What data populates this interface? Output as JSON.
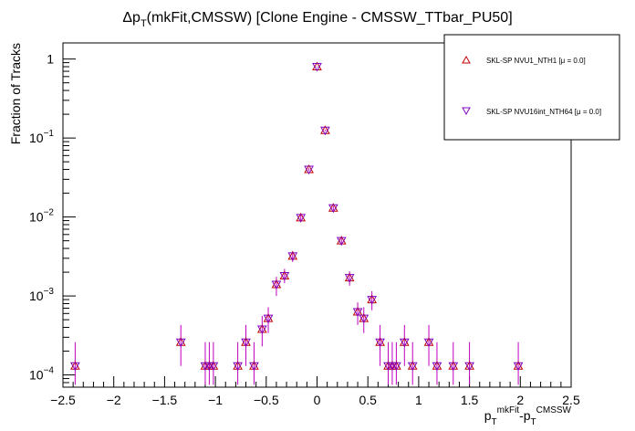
{
  "chart_data": {
    "type": "scatter",
    "title_prefix": "Δp",
    "title_sub": "T",
    "title_suffix": "(mkFit,CMSSW) [Clone Engine - CMSSW_TTbar_PU50]",
    "ylabel": "Fraction of Tracks",
    "xlabel": {
      "p1": "p",
      "p1_sub": "T",
      "p1_sup": "mkFit",
      "sep": "-",
      "p2": "p",
      "p2_sub": "T",
      "p2_sup": "CMSSW"
    },
    "xlim": [
      -2.5,
      2.5
    ],
    "ylim": [
      7e-05,
      1.6
    ],
    "yscale": "log",
    "x_ticks": [
      "−2.5",
      "−2",
      "−1.5",
      "−1",
      "−0.5",
      "0",
      "0.5",
      "1",
      "1.5",
      "2",
      "2.5"
    ],
    "y_ticks": [
      {
        "base": "1",
        "exp": ""
      },
      {
        "base": "10",
        "exp": "−1"
      },
      {
        "base": "10",
        "exp": "−2"
      },
      {
        "base": "10",
        "exp": "−3"
      },
      {
        "base": "10",
        "exp": "−4"
      }
    ],
    "grid": false,
    "legend_position": "top-right",
    "colors": {
      "marker_1": "#c00000",
      "marker_2": "#8000c0",
      "error_bar": "#c000c0"
    },
    "series": [
      {
        "name": "SKL-SP NVU1_NTH1 [μ =  0.0]",
        "marker": "triangle-up",
        "points": [
          {
            "x": -2.38,
            "y": 0.00013,
            "lo": 7.5e-05,
            "hi": 0.00026
          },
          {
            "x": -1.34,
            "y": 0.00026,
            "lo": 0.00013,
            "hi": 0.00043
          },
          {
            "x": -1.1,
            "y": 0.00013,
            "lo": 7.5e-05,
            "hi": 0.00026
          },
          {
            "x": -1.06,
            "y": 0.00013,
            "lo": 7.5e-05,
            "hi": 0.00026
          },
          {
            "x": -1.02,
            "y": 0.00013,
            "lo": 7.5e-05,
            "hi": 0.00026
          },
          {
            "x": -0.78,
            "y": 0.00013,
            "lo": 7.5e-05,
            "hi": 0.00026
          },
          {
            "x": -0.7,
            "y": 0.00026,
            "lo": 0.00013,
            "hi": 0.00043
          },
          {
            "x": -0.62,
            "y": 0.00013,
            "lo": 7.5e-05,
            "hi": 0.00026
          },
          {
            "x": -0.54,
            "y": 0.00038,
            "lo": 0.00023,
            "hi": 0.00056
          },
          {
            "x": -0.48,
            "y": 0.00052,
            "lo": 0.00034,
            "hi": 0.00072
          },
          {
            "x": -0.4,
            "y": 0.0014,
            "lo": 0.001,
            "hi": 0.00175
          },
          {
            "x": -0.32,
            "y": 0.0018,
            "lo": 0.00145,
            "hi": 0.0022
          },
          {
            "x": -0.24,
            "y": 0.0032,
            "lo": 0.0027,
            "hi": 0.0037
          },
          {
            "x": -0.16,
            "y": 0.0098,
            "lo": 0.009,
            "hi": 0.0107
          },
          {
            "x": -0.08,
            "y": 0.04,
            "lo": 0.0385,
            "hi": 0.0415
          },
          {
            "x": 0.0,
            "y": 0.8,
            "lo": 0.79,
            "hi": 0.81
          },
          {
            "x": 0.08,
            "y": 0.125,
            "lo": 0.122,
            "hi": 0.128
          },
          {
            "x": 0.16,
            "y": 0.013,
            "lo": 0.0121,
            "hi": 0.0139
          },
          {
            "x": 0.24,
            "y": 0.005,
            "lo": 0.0044,
            "hi": 0.0056
          },
          {
            "x": 0.32,
            "y": 0.0017,
            "lo": 0.00135,
            "hi": 0.00205
          },
          {
            "x": 0.4,
            "y": 0.00063,
            "lo": 0.00043,
            "hi": 0.00083
          },
          {
            "x": 0.46,
            "y": 0.00052,
            "lo": 0.00034,
            "hi": 0.00072
          },
          {
            "x": 0.54,
            "y": 0.0009,
            "lo": 0.00066,
            "hi": 0.00115
          },
          {
            "x": 0.62,
            "y": 0.00026,
            "lo": 0.00013,
            "hi": 0.00043
          },
          {
            "x": 0.7,
            "y": 0.00013,
            "lo": 7.5e-05,
            "hi": 0.00026
          },
          {
            "x": 0.74,
            "y": 0.00013,
            "lo": 7.5e-05,
            "hi": 0.00026
          },
          {
            "x": 0.78,
            "y": 0.00013,
            "lo": 7.5e-05,
            "hi": 0.00026
          },
          {
            "x": 0.86,
            "y": 0.00026,
            "lo": 0.00013,
            "hi": 0.00043
          },
          {
            "x": 0.94,
            "y": 0.00013,
            "lo": 7.5e-05,
            "hi": 0.00026
          },
          {
            "x": 1.1,
            "y": 0.00026,
            "lo": 0.00013,
            "hi": 0.00043
          },
          {
            "x": 1.18,
            "y": 0.00013,
            "lo": 7.5e-05,
            "hi": 0.00026
          },
          {
            "x": 1.34,
            "y": 0.00013,
            "lo": 7.5e-05,
            "hi": 0.00026
          },
          {
            "x": 1.5,
            "y": 0.00013,
            "lo": 7.5e-05,
            "hi": 0.00026
          },
          {
            "x": 1.98,
            "y": 0.00013,
            "lo": 7.5e-05,
            "hi": 0.00026
          }
        ]
      },
      {
        "name": "SKL-SP NVU16int_NTH64 [μ =  0.0]",
        "marker": "triangle-down",
        "points": [
          {
            "x": -2.38,
            "y": 0.00013,
            "lo": 7.5e-05,
            "hi": 0.00026
          },
          {
            "x": -1.34,
            "y": 0.00026,
            "lo": 0.00013,
            "hi": 0.00043
          },
          {
            "x": -1.1,
            "y": 0.00013,
            "lo": 7.5e-05,
            "hi": 0.00026
          },
          {
            "x": -1.06,
            "y": 0.00013,
            "lo": 7.5e-05,
            "hi": 0.00026
          },
          {
            "x": -1.02,
            "y": 0.00013,
            "lo": 7.5e-05,
            "hi": 0.00026
          },
          {
            "x": -0.78,
            "y": 0.00013,
            "lo": 7.5e-05,
            "hi": 0.00026
          },
          {
            "x": -0.7,
            "y": 0.00026,
            "lo": 0.00013,
            "hi": 0.00043
          },
          {
            "x": -0.62,
            "y": 0.00013,
            "lo": 7.5e-05,
            "hi": 0.00026
          },
          {
            "x": -0.54,
            "y": 0.00038,
            "lo": 0.00023,
            "hi": 0.00056
          },
          {
            "x": -0.48,
            "y": 0.00052,
            "lo": 0.00034,
            "hi": 0.00072
          },
          {
            "x": -0.4,
            "y": 0.0014,
            "lo": 0.001,
            "hi": 0.00175
          },
          {
            "x": -0.32,
            "y": 0.0018,
            "lo": 0.00145,
            "hi": 0.0022
          },
          {
            "x": -0.24,
            "y": 0.0032,
            "lo": 0.0027,
            "hi": 0.0037
          },
          {
            "x": -0.16,
            "y": 0.0098,
            "lo": 0.009,
            "hi": 0.0107
          },
          {
            "x": -0.08,
            "y": 0.04,
            "lo": 0.0385,
            "hi": 0.0415
          },
          {
            "x": 0.0,
            "y": 0.8,
            "lo": 0.79,
            "hi": 0.81
          },
          {
            "x": 0.08,
            "y": 0.125,
            "lo": 0.122,
            "hi": 0.128
          },
          {
            "x": 0.16,
            "y": 0.013,
            "lo": 0.0121,
            "hi": 0.0139
          },
          {
            "x": 0.24,
            "y": 0.005,
            "lo": 0.0044,
            "hi": 0.0056
          },
          {
            "x": 0.32,
            "y": 0.0017,
            "lo": 0.00135,
            "hi": 0.00205
          },
          {
            "x": 0.4,
            "y": 0.00063,
            "lo": 0.00043,
            "hi": 0.00083
          },
          {
            "x": 0.46,
            "y": 0.00052,
            "lo": 0.00034,
            "hi": 0.00072
          },
          {
            "x": 0.54,
            "y": 0.0009,
            "lo": 0.00066,
            "hi": 0.00115
          },
          {
            "x": 0.62,
            "y": 0.00026,
            "lo": 0.00013,
            "hi": 0.00043
          },
          {
            "x": 0.7,
            "y": 0.00013,
            "lo": 7.5e-05,
            "hi": 0.00026
          },
          {
            "x": 0.74,
            "y": 0.00013,
            "lo": 7.5e-05,
            "hi": 0.00026
          },
          {
            "x": 0.78,
            "y": 0.00013,
            "lo": 7.5e-05,
            "hi": 0.00026
          },
          {
            "x": 0.86,
            "y": 0.00026,
            "lo": 0.00013,
            "hi": 0.00043
          },
          {
            "x": 0.94,
            "y": 0.00013,
            "lo": 7.5e-05,
            "hi": 0.00026
          },
          {
            "x": 1.1,
            "y": 0.00026,
            "lo": 0.00013,
            "hi": 0.00043
          },
          {
            "x": 1.18,
            "y": 0.00013,
            "lo": 7.5e-05,
            "hi": 0.00026
          },
          {
            "x": 1.34,
            "y": 0.00013,
            "lo": 7.5e-05,
            "hi": 0.00026
          },
          {
            "x": 1.5,
            "y": 0.00013,
            "lo": 7.5e-05,
            "hi": 0.00026
          },
          {
            "x": 1.98,
            "y": 0.00013,
            "lo": 7.5e-05,
            "hi": 0.00026
          }
        ]
      }
    ]
  }
}
